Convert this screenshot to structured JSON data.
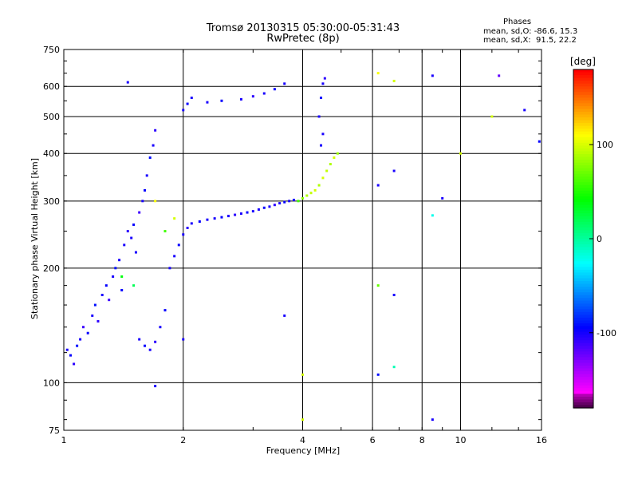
{
  "title_line1": "Tromsø 20130315 05:30:00-05:31:43",
  "title_line2": "RwPretec (8p)",
  "stats": {
    "heading": "Phases",
    "line_o": "mean, sd,O: -86.6, 15.3",
    "line_x": "mean, sd,X:  91.5, 22.2"
  },
  "colorbar": {
    "unit_label": "[deg]",
    "ticks": [
      {
        "value": 100,
        "label": "100"
      },
      {
        "value": 0,
        "label": "0"
      },
      {
        "value": -100,
        "label": "-100"
      }
    ],
    "range": [
      -180,
      180
    ]
  },
  "chart_data": {
    "type": "scatter",
    "xlabel": "Frequency [MHz]",
    "ylabel": "Stationary phase Virtual Height [km]",
    "xscale": "log",
    "yscale": "log",
    "xlim": [
      1,
      16
    ],
    "ylim": [
      75,
      750
    ],
    "x_ticks": [
      1,
      2,
      4,
      6,
      8,
      10,
      16
    ],
    "y_ticks": [
      75,
      100,
      200,
      300,
      400,
      500,
      600,
      750
    ],
    "grid_x": [
      2,
      4,
      6,
      8,
      10
    ],
    "grid_y": [
      100,
      200,
      300,
      400,
      500,
      600
    ],
    "series": [
      {
        "color_by": "phase_deg",
        "points": [
          [
            1.02,
            122,
            -100
          ],
          [
            1.04,
            118,
            -95
          ],
          [
            1.06,
            112,
            -105
          ],
          [
            1.08,
            125,
            -90
          ],
          [
            1.1,
            130,
            -100
          ],
          [
            1.12,
            140,
            -110
          ],
          [
            1.15,
            135,
            -95
          ],
          [
            1.18,
            150,
            -100
          ],
          [
            1.2,
            160,
            -90
          ],
          [
            1.22,
            145,
            -105
          ],
          [
            1.25,
            170,
            -100
          ],
          [
            1.28,
            180,
            -95
          ],
          [
            1.3,
            165,
            -110
          ],
          [
            1.33,
            190,
            -100
          ],
          [
            1.35,
            200,
            -90
          ],
          [
            1.38,
            210,
            -100
          ],
          [
            1.4,
            175,
            -95
          ],
          [
            1.42,
            230,
            -100
          ],
          [
            1.45,
            250,
            -105
          ],
          [
            1.48,
            240,
            -100
          ],
          [
            1.5,
            260,
            -95
          ],
          [
            1.52,
            220,
            -100
          ],
          [
            1.55,
            280,
            -110
          ],
          [
            1.58,
            300,
            -100
          ],
          [
            1.6,
            320,
            -95
          ],
          [
            1.62,
            350,
            -100
          ],
          [
            1.65,
            390,
            -90
          ],
          [
            1.68,
            420,
            -100
          ],
          [
            1.7,
            460,
            -105
          ],
          [
            1.55,
            130,
            -100
          ],
          [
            1.6,
            125,
            -95
          ],
          [
            1.65,
            122,
            -100
          ],
          [
            1.7,
            128,
            -105
          ],
          [
            1.75,
            140,
            -100
          ],
          [
            1.8,
            155,
            -95
          ],
          [
            1.85,
            200,
            -100
          ],
          [
            1.9,
            215,
            -100
          ],
          [
            1.95,
            230,
            -95
          ],
          [
            2.0,
            245,
            -100
          ],
          [
            2.05,
            255,
            -105
          ],
          [
            2.1,
            262,
            -100
          ],
          [
            2.2,
            265,
            -95
          ],
          [
            2.3,
            268,
            -100
          ],
          [
            2.4,
            270,
            -100
          ],
          [
            2.5,
            272,
            -95
          ],
          [
            2.6,
            274,
            -100
          ],
          [
            2.7,
            276,
            -105
          ],
          [
            2.8,
            278,
            -100
          ],
          [
            2.9,
            280,
            -95
          ],
          [
            3.0,
            282,
            -100
          ],
          [
            3.1,
            285,
            -100
          ],
          [
            3.2,
            288,
            -95
          ],
          [
            3.3,
            290,
            -100
          ],
          [
            3.4,
            293,
            -105
          ],
          [
            3.5,
            296,
            -100
          ],
          [
            3.6,
            298,
            -95
          ],
          [
            3.7,
            300,
            -100
          ],
          [
            3.8,
            302,
            -100
          ],
          [
            3.9,
            300,
            60
          ],
          [
            4.0,
            305,
            80
          ],
          [
            4.1,
            310,
            90
          ],
          [
            4.2,
            315,
            95
          ],
          [
            4.3,
            320,
            100
          ],
          [
            4.4,
            330,
            90
          ],
          [
            4.5,
            345,
            100
          ],
          [
            4.6,
            360,
            95
          ],
          [
            4.7,
            375,
            90
          ],
          [
            4.8,
            390,
            100
          ],
          [
            4.9,
            400,
            85
          ],
          [
            4.4,
            500,
            -100
          ],
          [
            4.45,
            560,
            -95
          ],
          [
            4.5,
            610,
            -100
          ],
          [
            4.55,
            630,
            -105
          ],
          [
            4.5,
            450,
            -100
          ],
          [
            4.45,
            420,
            -100
          ],
          [
            2.0,
            520,
            -100
          ],
          [
            2.05,
            540,
            -95
          ],
          [
            2.1,
            560,
            -100
          ],
          [
            2.3,
            545,
            -100
          ],
          [
            2.5,
            550,
            -95
          ],
          [
            2.8,
            555,
            -100
          ],
          [
            3.0,
            565,
            -105
          ],
          [
            3.2,
            575,
            -100
          ],
          [
            3.4,
            590,
            -95
          ],
          [
            3.6,
            610,
            -100
          ],
          [
            1.9,
            270,
            100
          ],
          [
            1.8,
            250,
            60
          ],
          [
            1.7,
            300,
            110
          ],
          [
            1.5,
            180,
            20
          ],
          [
            1.4,
            190,
            40
          ],
          [
            1.45,
            615,
            -100
          ],
          [
            6.2,
            650,
            110
          ],
          [
            6.8,
            620,
            100
          ],
          [
            8.5,
            640,
            -100
          ],
          [
            12.5,
            640,
            -120
          ],
          [
            14.5,
            520,
            -100
          ],
          [
            15.8,
            430,
            -95
          ],
          [
            6.2,
            330,
            -100
          ],
          [
            6.8,
            360,
            -100
          ],
          [
            6.2,
            180,
            70
          ],
          [
            6.8,
            170,
            -100
          ],
          [
            6.2,
            105,
            -90
          ],
          [
            6.8,
            110,
            -5
          ],
          [
            8.5,
            275,
            -20
          ],
          [
            9.0,
            305,
            -100
          ],
          [
            8.5,
            80,
            -100
          ],
          [
            4.0,
            105,
            100
          ],
          [
            4.0,
            80,
            100
          ],
          [
            2.0,
            130,
            -100
          ],
          [
            3.6,
            150,
            -100
          ],
          [
            1.7,
            98,
            -100
          ],
          [
            12.0,
            500,
            100
          ],
          [
            10.0,
            400,
            100
          ]
        ]
      }
    ]
  }
}
